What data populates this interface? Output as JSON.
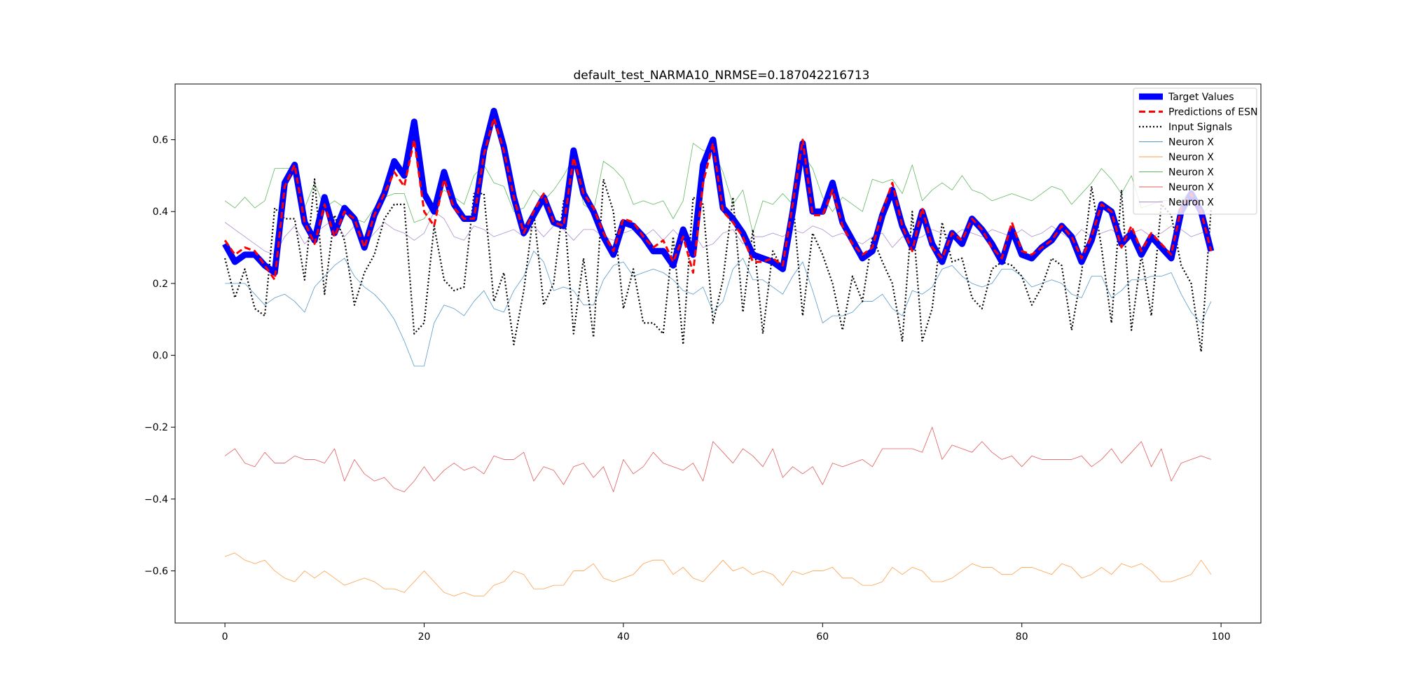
{
  "chart_data": {
    "type": "line",
    "title": "default_test_NARMA10_NRMSE=0.187042216713",
    "xlabel": "",
    "ylabel": "",
    "xlim": [
      -5,
      104
    ],
    "ylim": [
      -0.745,
      0.755
    ],
    "xticks": [
      0,
      20,
      40,
      60,
      80,
      100
    ],
    "yticks": [
      -0.6,
      -0.4,
      -0.2,
      0.0,
      0.2,
      0.4,
      0.6
    ],
    "xtick_labels": [
      "0",
      "20",
      "40",
      "60",
      "80",
      "100"
    ],
    "ytick_labels": [
      "−0.6",
      "−0.4",
      "−0.2",
      "0.0",
      "0.2",
      "0.4",
      "0.6"
    ],
    "grid": false,
    "legend_position": "top-right",
    "series": [
      {
        "name": "Target Values",
        "color": "#0000ff",
        "style": "solid-thick",
        "values": [
          0.31,
          0.26,
          0.28,
          0.28,
          0.25,
          0.23,
          0.48,
          0.53,
          0.37,
          0.32,
          0.44,
          0.34,
          0.41,
          0.38,
          0.3,
          0.39,
          0.45,
          0.54,
          0.5,
          0.65,
          0.45,
          0.4,
          0.51,
          0.42,
          0.38,
          0.38,
          0.57,
          0.68,
          0.58,
          0.44,
          0.34,
          0.39,
          0.44,
          0.37,
          0.36,
          0.57,
          0.45,
          0.4,
          0.33,
          0.28,
          0.37,
          0.36,
          0.33,
          0.29,
          0.29,
          0.25,
          0.35,
          0.28,
          0.53,
          0.6,
          0.41,
          0.38,
          0.34,
          0.28,
          0.27,
          0.26,
          0.24,
          0.4,
          0.59,
          0.4,
          0.4,
          0.48,
          0.37,
          0.32,
          0.27,
          0.29,
          0.39,
          0.46,
          0.36,
          0.3,
          0.4,
          0.31,
          0.26,
          0.34,
          0.31,
          0.38,
          0.35,
          0.31,
          0.26,
          0.35,
          0.28,
          0.27,
          0.3,
          0.32,
          0.36,
          0.33,
          0.26,
          0.32,
          0.42,
          0.4,
          0.31,
          0.34,
          0.28,
          0.33,
          0.3,
          0.27,
          0.4,
          0.45,
          0.4,
          0.29
        ]
      },
      {
        "name": "Predictions of ESN",
        "color": "#ff0000",
        "style": "dashed",
        "values": [
          0.32,
          0.28,
          0.3,
          0.29,
          0.25,
          0.21,
          0.47,
          0.53,
          0.37,
          0.31,
          0.42,
          0.33,
          0.4,
          0.38,
          0.3,
          0.39,
          0.45,
          0.51,
          0.47,
          0.6,
          0.4,
          0.36,
          0.49,
          0.41,
          0.38,
          0.38,
          0.56,
          0.66,
          0.57,
          0.44,
          0.34,
          0.4,
          0.45,
          0.37,
          0.36,
          0.55,
          0.45,
          0.41,
          0.34,
          0.29,
          0.38,
          0.37,
          0.33,
          0.3,
          0.32,
          0.26,
          0.33,
          0.23,
          0.48,
          0.59,
          0.4,
          0.37,
          0.33,
          0.26,
          0.26,
          0.27,
          0.25,
          0.42,
          0.6,
          0.39,
          0.39,
          0.46,
          0.36,
          0.31,
          0.28,
          0.3,
          0.4,
          0.48,
          0.36,
          0.29,
          0.41,
          0.3,
          0.27,
          0.34,
          0.32,
          0.38,
          0.35,
          0.3,
          0.27,
          0.37,
          0.29,
          0.28,
          0.3,
          0.32,
          0.36,
          0.33,
          0.27,
          0.33,
          0.42,
          0.4,
          0.3,
          0.36,
          0.29,
          0.34,
          0.31,
          0.28,
          0.41,
          0.45,
          0.4,
          0.29
        ]
      },
      {
        "name": "Input Signals",
        "color": "#000000",
        "style": "dotted",
        "values": [
          0.27,
          0.16,
          0.24,
          0.13,
          0.11,
          0.41,
          0.38,
          0.38,
          0.21,
          0.49,
          0.17,
          0.39,
          0.32,
          0.14,
          0.23,
          0.28,
          0.38,
          0.42,
          0.42,
          0.06,
          0.09,
          0.36,
          0.21,
          0.18,
          0.19,
          0.45,
          0.45,
          0.15,
          0.23,
          0.03,
          0.18,
          0.4,
          0.14,
          0.2,
          0.43,
          0.06,
          0.27,
          0.05,
          0.49,
          0.4,
          0.13,
          0.24,
          0.09,
          0.09,
          0.06,
          0.33,
          0.03,
          0.44,
          0.42,
          0.09,
          0.21,
          0.44,
          0.12,
          0.35,
          0.06,
          0.29,
          0.24,
          0.44,
          0.11,
          0.34,
          0.28,
          0.2,
          0.07,
          0.22,
          0.15,
          0.33,
          0.26,
          0.2,
          0.04,
          0.4,
          0.04,
          0.13,
          0.37,
          0.26,
          0.27,
          0.16,
          0.13,
          0.24,
          0.26,
          0.25,
          0.22,
          0.14,
          0.19,
          0.27,
          0.25,
          0.07,
          0.23,
          0.47,
          0.3,
          0.09,
          0.46,
          0.07,
          0.28,
          0.11,
          0.42,
          0.39,
          0.25,
          0.2,
          0.01,
          0.41
        ]
      },
      {
        "name": "Neuron X",
        "color": "#1f77b4",
        "style": "thin",
        "values": [
          0.2,
          0.2,
          0.2,
          0.17,
          0.14,
          0.16,
          0.17,
          0.15,
          0.12,
          0.19,
          0.22,
          0.25,
          0.27,
          0.22,
          0.19,
          0.17,
          0.14,
          0.1,
          0.04,
          -0.03,
          -0.03,
          0.09,
          0.14,
          0.13,
          0.11,
          0.15,
          0.18,
          0.13,
          0.12,
          0.18,
          0.22,
          0.29,
          0.26,
          0.18,
          0.19,
          0.18,
          0.14,
          0.14,
          0.21,
          0.25,
          0.26,
          0.22,
          0.23,
          0.24,
          0.23,
          0.21,
          0.18,
          0.17,
          0.19,
          0.12,
          0.15,
          0.24,
          0.27,
          0.21,
          0.21,
          0.19,
          0.17,
          0.22,
          0.26,
          0.18,
          0.09,
          0.11,
          0.11,
          0.12,
          0.15,
          0.15,
          0.17,
          0.13,
          0.11,
          0.18,
          0.17,
          0.19,
          0.24,
          0.25,
          0.22,
          0.2,
          0.19,
          0.2,
          0.24,
          0.24,
          0.22,
          0.19,
          0.2,
          0.21,
          0.2,
          0.17,
          0.16,
          0.22,
          0.22,
          0.16,
          0.18,
          0.21,
          0.21,
          0.22,
          0.22,
          0.23,
          0.17,
          0.12,
          0.09,
          0.15
        ]
      },
      {
        "name": "Neuron X",
        "color": "#ff7f0e",
        "style": "thin",
        "values": [
          -0.56,
          -0.55,
          -0.57,
          -0.58,
          -0.57,
          -0.6,
          -0.62,
          -0.63,
          -0.6,
          -0.62,
          -0.6,
          -0.62,
          -0.64,
          -0.63,
          -0.62,
          -0.63,
          -0.65,
          -0.65,
          -0.66,
          -0.63,
          -0.6,
          -0.63,
          -0.66,
          -0.67,
          -0.66,
          -0.67,
          -0.67,
          -0.64,
          -0.63,
          -0.6,
          -0.61,
          -0.65,
          -0.65,
          -0.64,
          -0.64,
          -0.6,
          -0.6,
          -0.58,
          -0.62,
          -0.63,
          -0.62,
          -0.61,
          -0.58,
          -0.57,
          -0.57,
          -0.61,
          -0.59,
          -0.62,
          -0.63,
          -0.6,
          -0.57,
          -0.6,
          -0.59,
          -0.61,
          -0.6,
          -0.61,
          -0.64,
          -0.6,
          -0.61,
          -0.6,
          -0.6,
          -0.59,
          -0.62,
          -0.62,
          -0.64,
          -0.64,
          -0.63,
          -0.59,
          -0.61,
          -0.59,
          -0.6,
          -0.63,
          -0.63,
          -0.62,
          -0.6,
          -0.58,
          -0.59,
          -0.59,
          -0.61,
          -0.61,
          -0.59,
          -0.59,
          -0.6,
          -0.61,
          -0.58,
          -0.59,
          -0.62,
          -0.61,
          -0.59,
          -0.61,
          -0.58,
          -0.59,
          -0.58,
          -0.6,
          -0.63,
          -0.63,
          -0.62,
          -0.61,
          -0.57,
          -0.61
        ]
      },
      {
        "name": "Neuron X",
        "color": "#2ca02c",
        "style": "thin",
        "values": [
          0.43,
          0.41,
          0.44,
          0.41,
          0.43,
          0.52,
          0.52,
          0.52,
          0.41,
          0.48,
          0.41,
          0.43,
          0.41,
          0.38,
          0.37,
          0.41,
          0.44,
          0.45,
          0.45,
          0.37,
          0.38,
          0.42,
          0.46,
          0.44,
          0.42,
          0.5,
          0.53,
          0.48,
          0.47,
          0.4,
          0.41,
          0.46,
          0.43,
          0.46,
          0.5,
          0.55,
          0.42,
          0.4,
          0.54,
          0.52,
          0.49,
          0.42,
          0.43,
          0.42,
          0.43,
          0.38,
          0.43,
          0.59,
          0.57,
          0.57,
          0.51,
          0.42,
          0.46,
          0.34,
          0.43,
          0.42,
          0.45,
          0.42,
          0.56,
          0.52,
          0.44,
          0.4,
          0.44,
          0.42,
          0.4,
          0.49,
          0.48,
          0.49,
          0.45,
          0.53,
          0.43,
          0.46,
          0.48,
          0.46,
          0.5,
          0.46,
          0.45,
          0.43,
          0.44,
          0.45,
          0.44,
          0.43,
          0.45,
          0.47,
          0.46,
          0.42,
          0.45,
          0.48,
          0.52,
          0.49,
          0.45,
          0.5,
          0.41,
          0.42,
          0.43,
          0.43,
          0.43,
          0.46,
          0.39,
          0.42
        ]
      },
      {
        "name": "Neuron X",
        "color": "#d62728",
        "style": "thin",
        "values": [
          -0.28,
          -0.26,
          -0.3,
          -0.31,
          -0.27,
          -0.3,
          -0.3,
          -0.28,
          -0.29,
          -0.29,
          -0.3,
          -0.26,
          -0.35,
          -0.29,
          -0.33,
          -0.35,
          -0.34,
          -0.37,
          -0.38,
          -0.35,
          -0.31,
          -0.35,
          -0.32,
          -0.3,
          -0.32,
          -0.31,
          -0.33,
          -0.28,
          -0.29,
          -0.29,
          -0.27,
          -0.35,
          -0.31,
          -0.32,
          -0.36,
          -0.31,
          -0.3,
          -0.34,
          -0.31,
          -0.38,
          -0.29,
          -0.33,
          -0.31,
          -0.27,
          -0.3,
          -0.31,
          -0.32,
          -0.3,
          -0.35,
          -0.24,
          -0.27,
          -0.3,
          -0.26,
          -0.28,
          -0.31,
          -0.26,
          -0.34,
          -0.31,
          -0.33,
          -0.31,
          -0.36,
          -0.3,
          -0.31,
          -0.3,
          -0.29,
          -0.31,
          -0.26,
          -0.26,
          -0.26,
          -0.26,
          -0.27,
          -0.2,
          -0.29,
          -0.25,
          -0.26,
          -0.27,
          -0.24,
          -0.27,
          -0.29,
          -0.28,
          -0.31,
          -0.28,
          -0.29,
          -0.29,
          -0.29,
          -0.29,
          -0.28,
          -0.31,
          -0.29,
          -0.26,
          -0.3,
          -0.27,
          -0.24,
          -0.31,
          -0.26,
          -0.35,
          -0.3,
          -0.29,
          -0.28,
          -0.29
        ]
      },
      {
        "name": "Neuron X",
        "color": "#9467bd",
        "style": "thin",
        "values": [
          0.37,
          0.35,
          0.33,
          0.31,
          0.29,
          0.28,
          0.33,
          0.36,
          0.31,
          0.34,
          0.36,
          0.38,
          0.33,
          0.36,
          0.31,
          0.34,
          0.37,
          0.35,
          0.34,
          0.32,
          0.34,
          0.4,
          0.38,
          0.33,
          0.32,
          0.36,
          0.35,
          0.33,
          0.34,
          0.35,
          0.33,
          0.36,
          0.33,
          0.36,
          0.35,
          0.32,
          0.35,
          0.35,
          0.33,
          0.32,
          0.34,
          0.35,
          0.33,
          0.35,
          0.32,
          0.35,
          0.32,
          0.34,
          0.3,
          0.31,
          0.34,
          0.35,
          0.31,
          0.33,
          0.33,
          0.34,
          0.33,
          0.35,
          0.34,
          0.36,
          0.35,
          0.33,
          0.34,
          0.32,
          0.31,
          0.33,
          0.34,
          0.3,
          0.33,
          0.32,
          0.33,
          0.35,
          0.34,
          0.33,
          0.35,
          0.34,
          0.33,
          0.35,
          0.34,
          0.33,
          0.35,
          0.33,
          0.34,
          0.36,
          0.34,
          0.32,
          0.35,
          0.33,
          0.34,
          0.35,
          0.33,
          0.34,
          0.35,
          0.33,
          0.34,
          0.36,
          0.35,
          0.33,
          0.34,
          0.35
        ]
      }
    ]
  }
}
